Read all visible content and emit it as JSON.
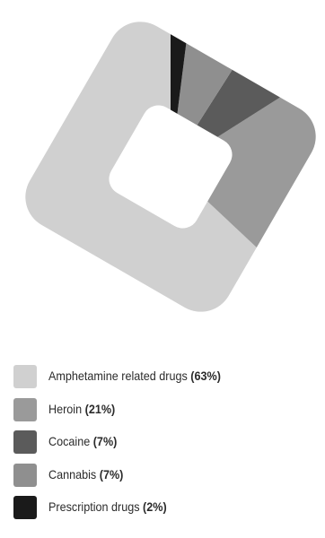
{
  "chart_data": {
    "type": "pie",
    "style": "donut",
    "slices": [
      {
        "label": "Amphetamine related drugs",
        "value": 63,
        "pct_label": "(63%)",
        "color": "#d0d0d0"
      },
      {
        "label": "Heroin",
        "value": 21,
        "pct_label": "(21%)",
        "color": "#9a9a9a"
      },
      {
        "label": "Cocaine",
        "value": 7,
        "pct_label": "(7%)",
        "color": "#5b5b5b"
      },
      {
        "label": "Cannabis",
        "value": 7,
        "pct_label": "(7%)",
        "color": "#8f8f8f"
      },
      {
        "label": "Prescription drugs",
        "value": 2,
        "pct_label": "(2%)",
        "color": "#1a1a1a"
      }
    ],
    "legend_position": "bottom-left"
  }
}
